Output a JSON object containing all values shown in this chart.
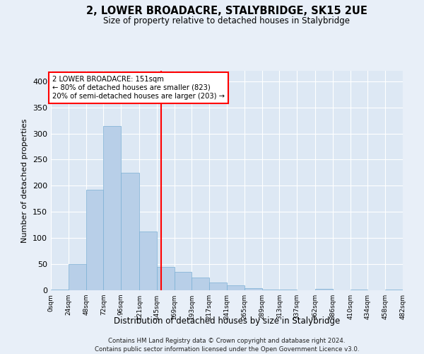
{
  "title": "2, LOWER BROADACRE, STALYBRIDGE, SK15 2UE",
  "subtitle": "Size of property relative to detached houses in Stalybridge",
  "xlabel": "Distribution of detached houses by size in Stalybridge",
  "ylabel": "Number of detached properties",
  "footer1": "Contains HM Land Registry data © Crown copyright and database right 2024.",
  "footer2": "Contains public sector information licensed under the Open Government Licence v3.0.",
  "annotation_line1": "2 LOWER BROADACRE: 151sqm",
  "annotation_line2": "← 80% of detached houses are smaller (823)",
  "annotation_line3": "20% of semi-detached houses are larger (203) →",
  "bar_color": "#b8cfe8",
  "bar_edge_color": "#7aafd4",
  "red_line_x": 151,
  "bin_edges": [
    0,
    24,
    48,
    72,
    96,
    121,
    145,
    169,
    193,
    217,
    241,
    265,
    289,
    313,
    337,
    362,
    386,
    410,
    434,
    458,
    482
  ],
  "bar_heights": [
    2,
    50,
    193,
    315,
    225,
    113,
    45,
    35,
    25,
    15,
    9,
    4,
    2,
    1,
    0,
    3,
    0,
    2,
    0,
    1
  ],
  "ylim": [
    0,
    420
  ],
  "yticks": [
    0,
    50,
    100,
    150,
    200,
    250,
    300,
    350,
    400
  ],
  "xlim_max": 482,
  "bg_color": "#e8eff8",
  "plot_bg_color": "#dde8f4"
}
